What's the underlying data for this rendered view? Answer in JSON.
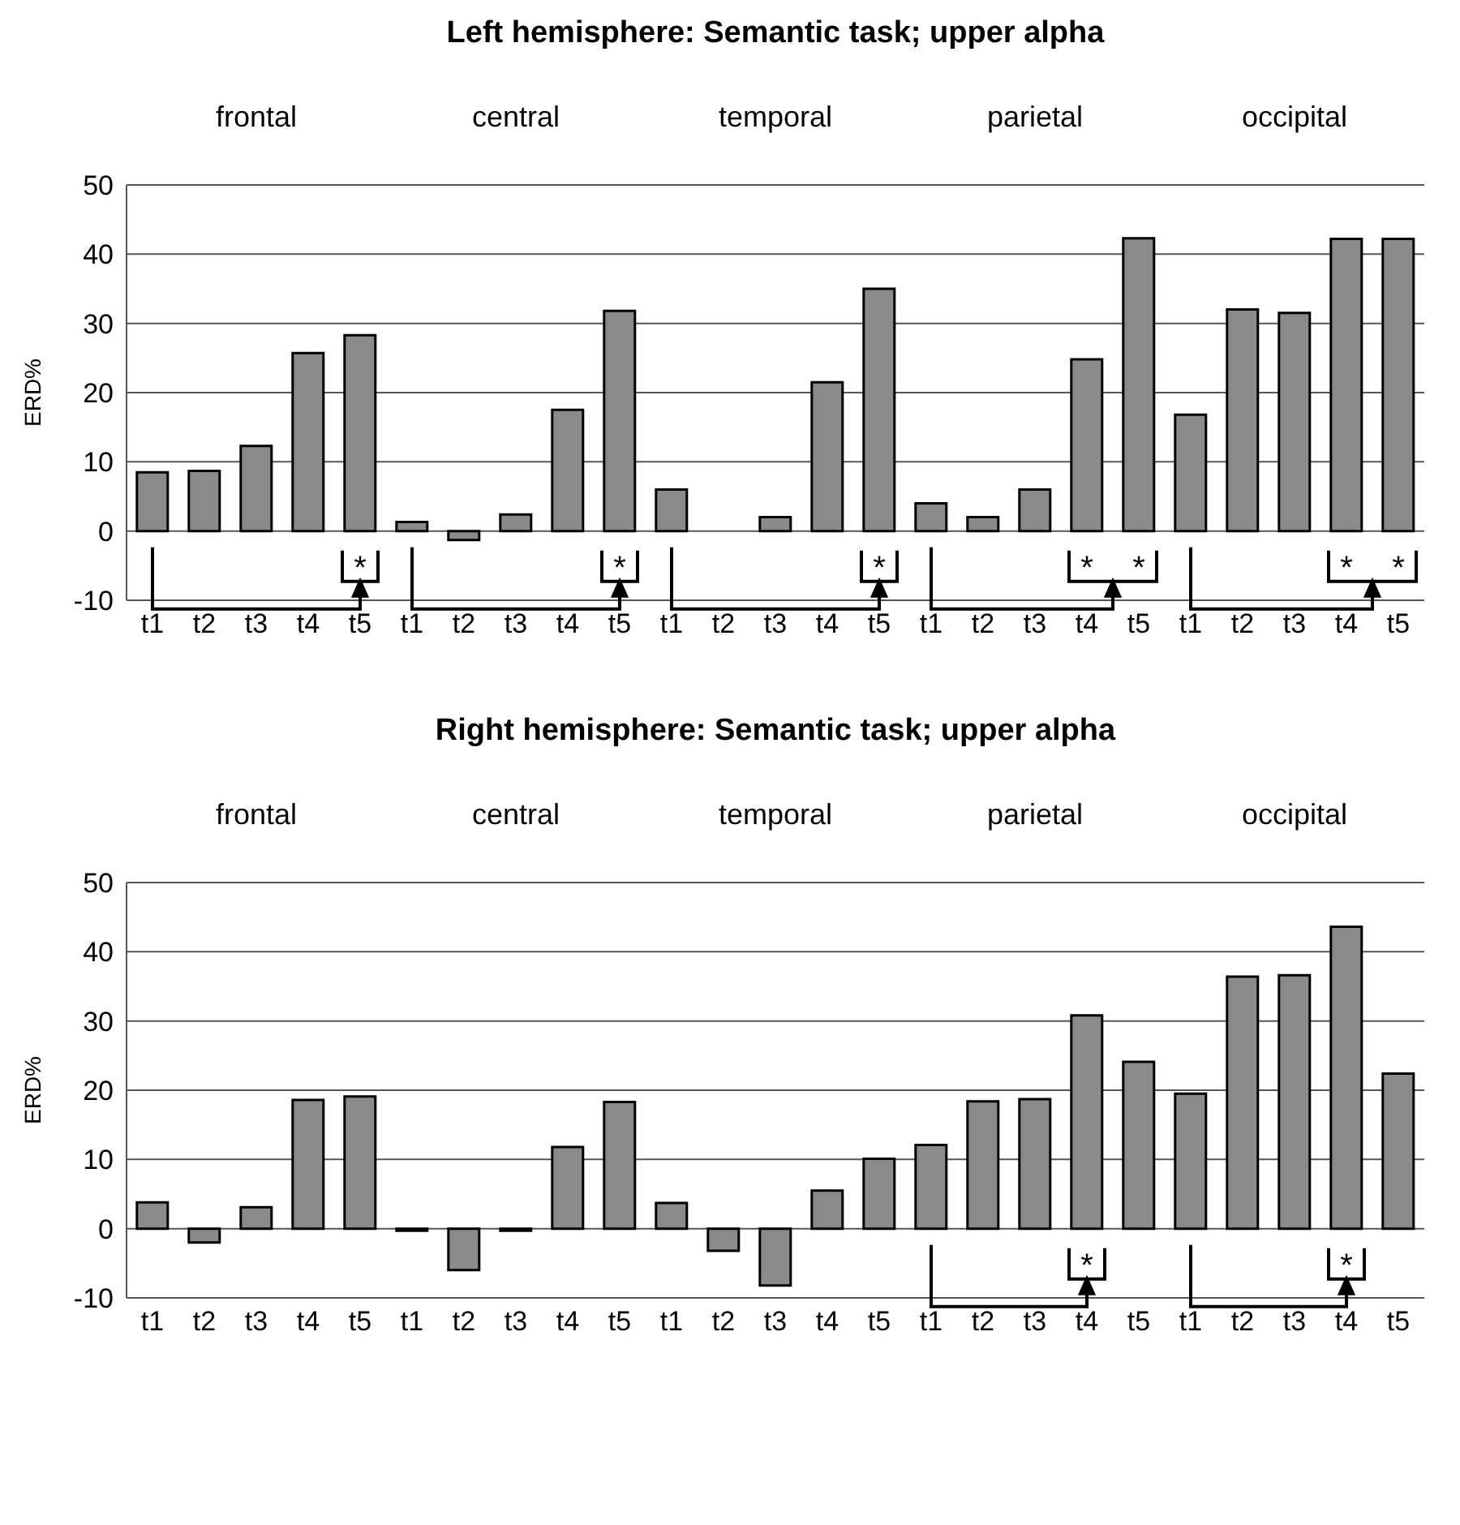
{
  "chart_data": [
    {
      "type": "bar",
      "subtitle": "frontal",
      "ylabel": "ERD%",
      "categories": [
        "t1",
        "t2",
        "t3",
        "t4",
        "t5"
      ],
      "values": [
        8.5,
        8.7,
        12.3,
        25.7,
        28.3
      ],
      "color": "#8a8a8a",
      "ylim": [
        -10,
        50
      ],
      "yticks": [
        -10,
        0,
        10,
        20,
        30,
        40,
        50
      ],
      "grid": "y",
      "annotations": [
        {
          "text": "*",
          "x": "t5"
        }
      ]
    },
    {
      "type": "bar",
      "subtitle": "central",
      "categories": [
        "t1",
        "t2",
        "t3",
        "t4",
        "t5"
      ],
      "values": [
        1.3,
        -1.3,
        2.4,
        17.5,
        31.8
      ],
      "color": "#8a8a8a",
      "ylim": [
        -10,
        50
      ],
      "yticks": [
        -10,
        0,
        10,
        20,
        30,
        40,
        50
      ],
      "grid": "y",
      "tick_labels": "x",
      "annotations": [
        {
          "text": "*",
          "x": "t5"
        }
      ]
    },
    {
      "type": "bar",
      "title": "Left hemisphere: Semantic task; upper alpha",
      "subtitle": "temporal",
      "categories": [
        "t1",
        "t2",
        "t3",
        "t4",
        "t5"
      ],
      "values": [
        6,
        0,
        2,
        21.5,
        35
      ],
      "color": "#8a8a8a",
      "ylim": [
        -10,
        50
      ],
      "yticks": [
        -10,
        0,
        10,
        20,
        30,
        40,
        50
      ],
      "grid": "y",
      "tick_labels": "x",
      "annotations": [
        {
          "text": "*",
          "x": "t5"
        }
      ]
    },
    {
      "type": "bar",
      "subtitle": "parietal",
      "categories": [
        "t1",
        "t2",
        "t3",
        "t4",
        "t5"
      ],
      "values": [
        4,
        2,
        6,
        24.8,
        42.3
      ],
      "color": "#8a8a8a",
      "ylim": [
        -10,
        50
      ],
      "yticks": [
        -10,
        0,
        10,
        20,
        30,
        40,
        50
      ],
      "grid": "y",
      "tick_labels": "x",
      "annotations": [
        "*",
        "*"
      ]
    },
    {
      "type": "bar",
      "subtitle": "occipital",
      "categories": [
        "t1",
        "t2",
        "t3",
        "t4",
        "t5"
      ],
      "values": [
        16.8,
        32,
        31.5,
        42.2,
        42.2
      ],
      "color": "#8a8a8a",
      "ylim": [
        -10,
        50
      ],
      "yticks": [
        -10,
        0,
        10,
        20,
        30,
        40,
        50
      ],
      "grid": "y",
      "tick_labels": "x",
      "annotations": [
        "*",
        "*"
      ]
    },
    {
      "type": "bar",
      "subtitle": "frontal",
      "ylabel": "ERD%",
      "categories": [
        "t1",
        "t2",
        "t3",
        "t4",
        "t5"
      ],
      "values": [
        3.8,
        -2,
        3.1,
        18.6,
        19.1
      ],
      "color": "#8a8a8a",
      "ylim": [
        -10,
        50
      ],
      "yticks": [
        -10,
        0,
        10,
        20,
        30,
        40,
        50
      ],
      "grid": "y"
    },
    {
      "type": "bar",
      "subtitle": "central",
      "categories": [
        "t1",
        "t2",
        "t3",
        "t4",
        "t5"
      ],
      "values": [
        -0.3,
        -6,
        -0.3,
        11.8,
        18.3
      ],
      "color": "#8a8a8a",
      "ylim": [
        -10,
        50
      ],
      "yticks": [
        -10,
        0,
        10,
        20,
        30,
        40,
        50
      ],
      "grid": "y",
      "tick_labels": "x"
    },
    {
      "type": "bar",
      "title": "Right hemisphere: Semantic task; upper alpha",
      "subtitle": "temporal",
      "categories": [
        "t1",
        "t2",
        "t3",
        "t4",
        "t5"
      ],
      "values": [
        3.7,
        -3.2,
        -8.2,
        5.5,
        10.1
      ],
      "color": "#8a8a8a",
      "ylim": [
        -10,
        50
      ],
      "yticks": [
        -10,
        0,
        10,
        20,
        30,
        40,
        50
      ],
      "grid": "y",
      "tick_labels": "x"
    },
    {
      "type": "bar",
      "subtitle": "parietal",
      "categories": [
        "t1",
        "t2",
        "t3",
        "t4",
        "t5"
      ],
      "values": [
        12.1,
        18.4,
        18.7,
        30.8,
        24.1
      ],
      "color": "#8a8a8a",
      "ylim": [
        -10,
        50
      ],
      "yticks": [
        -10,
        0,
        10,
        20,
        30,
        40,
        50
      ],
      "grid": "y",
      "tick_labels": "x",
      "annotations": [
        {
          "text": "*",
          "x": "t4"
        }
      ]
    },
    {
      "type": "bar",
      "subtitle": "occipital",
      "categories": [
        "t1",
        "t2",
        "t3",
        "t4",
        "t5"
      ],
      "values": [
        19.5,
        36.4,
        36.6,
        43.6,
        22.4
      ],
      "color": "#8a8a8a",
      "ylim": [
        -10,
        50
      ],
      "yticks": [
        -10,
        0,
        10,
        20,
        30,
        40,
        50
      ],
      "grid": "y",
      "tick_labels": "x",
      "annotations": [
        {
          "text": "*",
          "x": "t4"
        }
      ]
    }
  ]
}
